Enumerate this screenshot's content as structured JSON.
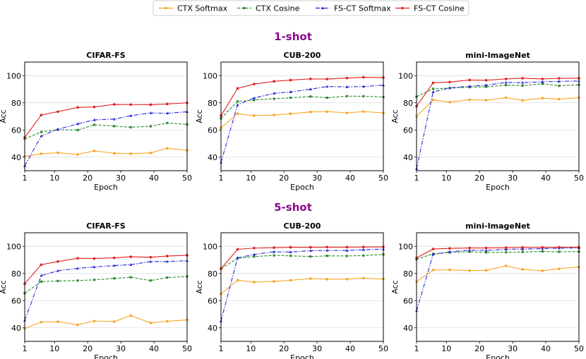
{
  "legend": [
    {
      "name": "CTX Softmax",
      "color": "#f5a623",
      "dash": "solid",
      "marker": "circle"
    },
    {
      "name": "CTX Cosine",
      "color": "#2e8b2e",
      "dash": "dash",
      "marker": "square"
    },
    {
      "name": "FS-CT Softmax",
      "color": "#2626d9",
      "dash": "dashdot",
      "marker": "triangle"
    },
    {
      "name": "FS-CT Cosine",
      "color": "#e02020",
      "dash": "solid",
      "marker": "circle"
    }
  ],
  "sections": [
    {
      "title": "1-shot",
      "color": "#8b0a8b"
    },
    {
      "title": "5-shot",
      "color": "#8b0a8b"
    }
  ],
  "chart_data": [
    {
      "type": "line",
      "shot": "1-shot",
      "title": "CIFAR-FS",
      "xlabel": "Epoch",
      "ylabel": "Acc",
      "xlim": [
        1,
        50
      ],
      "ylim": [
        30,
        110
      ],
      "xticks": [
        1,
        10,
        20,
        30,
        40,
        50
      ],
      "yticks": [
        40,
        60,
        80,
        100
      ],
      "grid": true,
      "x": [
        1,
        6,
        11,
        17,
        22,
        28,
        33,
        39,
        44,
        50
      ],
      "series": [
        {
          "name": "CTX Softmax",
          "values": [
            40.5,
            42.5,
            43.2,
            42.0,
            44.6,
            42.8,
            42.5,
            43.1,
            46.5,
            45.0
          ]
        },
        {
          "name": "CTX Cosine",
          "values": [
            53.5,
            58.5,
            60.2,
            59.9,
            63.8,
            62.8,
            62.0,
            62.7,
            65.1,
            64.1
          ]
        },
        {
          "name": "FS-CT Softmax",
          "values": [
            33.5,
            55.5,
            60.5,
            64.5,
            67.4,
            68.0,
            70.5,
            72.5,
            72.3,
            73.4
          ]
        },
        {
          "name": "FS-CT Cosine",
          "values": [
            54.5,
            71.0,
            73.5,
            76.6,
            76.9,
            78.8,
            78.7,
            78.6,
            79.1,
            80.0
          ]
        }
      ]
    },
    {
      "type": "line",
      "shot": "1-shot",
      "title": "CUB-200",
      "xlabel": "Epoch",
      "ylabel": "Acc",
      "xlim": [
        1,
        50
      ],
      "ylim": [
        30,
        110
      ],
      "xticks": [
        1,
        10,
        20,
        30,
        40,
        50
      ],
      "yticks": [
        40,
        60,
        80,
        100
      ],
      "grid": true,
      "x": [
        1,
        6,
        11,
        17,
        22,
        28,
        33,
        39,
        44,
        50
      ],
      "series": [
        {
          "name": "CTX Softmax",
          "values": [
            61.5,
            72.0,
            70.5,
            71.0,
            71.9,
            73.3,
            73.5,
            72.6,
            73.5,
            72.6
          ]
        },
        {
          "name": "CTX Cosine",
          "values": [
            68.5,
            81.0,
            82.0,
            83.0,
            83.7,
            84.6,
            83.7,
            84.9,
            84.8,
            84.3
          ]
        },
        {
          "name": "FS-CT Softmax",
          "values": [
            36.0,
            78.5,
            83.5,
            87.0,
            88.0,
            90.0,
            92.0,
            91.7,
            92.0,
            93.0
          ]
        },
        {
          "name": "FS-CT Cosine",
          "values": [
            70.5,
            90.6,
            93.8,
            95.8,
            96.7,
            97.6,
            97.5,
            98.2,
            98.8,
            98.6
          ]
        }
      ]
    },
    {
      "type": "line",
      "shot": "1-shot",
      "title": "mini-ImageNet",
      "xlabel": "Epoch",
      "ylabel": "Acc",
      "xlim": [
        1,
        50
      ],
      "ylim": [
        30,
        110
      ],
      "xticks": [
        1,
        10,
        20,
        30,
        40,
        50
      ],
      "yticks": [
        40,
        60,
        80,
        100
      ],
      "grid": true,
      "x": [
        1,
        6,
        11,
        17,
        22,
        28,
        33,
        39,
        44,
        50
      ],
      "series": [
        {
          "name": "CTX Softmax",
          "values": [
            70.0,
            82.2,
            80.5,
            82.3,
            81.9,
            83.8,
            81.8,
            83.4,
            82.7,
            83.8
          ]
        },
        {
          "name": "CTX Cosine",
          "values": [
            84.5,
            90.3,
            90.8,
            91.5,
            91.8,
            93.0,
            92.7,
            94.0,
            92.5,
            93.3
          ]
        },
        {
          "name": "FS-CT Softmax",
          "values": [
            31.5,
            88.0,
            91.0,
            92.2,
            93.0,
            95.0,
            94.9,
            95.4,
            95.8,
            96.0
          ]
        },
        {
          "name": "FS-CT Cosine",
          "values": [
            77.5,
            94.7,
            95.3,
            96.8,
            96.6,
            97.6,
            98.1,
            97.6,
            98.0,
            98.1
          ]
        }
      ]
    },
    {
      "type": "line",
      "shot": "5-shot",
      "title": "CIFAR-FS",
      "xlabel": "Epoch",
      "ylabel": "Acc",
      "xlim": [
        1,
        50
      ],
      "ylim": [
        30,
        110
      ],
      "xticks": [
        1,
        10,
        20,
        30,
        40,
        50
      ],
      "yticks": [
        40,
        60,
        80,
        100
      ],
      "grid": true,
      "x": [
        1,
        6,
        11,
        17,
        22,
        28,
        33,
        39,
        44,
        50
      ],
      "series": [
        {
          "name": "CTX Softmax",
          "values": [
            39.5,
            44.2,
            44.5,
            42.2,
            45.0,
            44.6,
            49.0,
            43.6,
            44.8,
            45.8
          ]
        },
        {
          "name": "CTX Cosine",
          "values": [
            65.5,
            74.0,
            74.5,
            74.8,
            75.3,
            76.4,
            77.2,
            74.8,
            77.0,
            77.8
          ]
        },
        {
          "name": "FS-CT Softmax",
          "values": [
            45.5,
            78.5,
            82.0,
            83.8,
            84.8,
            85.8,
            86.5,
            88.8,
            88.8,
            89.4
          ]
        },
        {
          "name": "FS-CT Cosine",
          "values": [
            72.5,
            86.5,
            88.8,
            91.2,
            91.0,
            91.5,
            92.3,
            92.0,
            92.8,
            93.4
          ]
        }
      ]
    },
    {
      "type": "line",
      "shot": "5-shot",
      "title": "CUB-200",
      "xlabel": "Epoch",
      "ylabel": "Acc",
      "xlim": [
        1,
        50
      ],
      "ylim": [
        30,
        110
      ],
      "xticks": [
        1,
        10,
        20,
        30,
        40,
        50
      ],
      "yticks": [
        40,
        60,
        80,
        100
      ],
      "grid": true,
      "x": [
        1,
        6,
        11,
        17,
        22,
        28,
        33,
        39,
        44,
        50
      ],
      "series": [
        {
          "name": "CTX Softmax",
          "values": [
            65.0,
            75.1,
            73.6,
            74.2,
            75.0,
            76.2,
            75.8,
            75.8,
            76.6,
            75.9
          ]
        },
        {
          "name": "CTX Cosine",
          "values": [
            83.5,
            91.2,
            92.5,
            93.3,
            93.0,
            92.5,
            93.0,
            92.9,
            93.2,
            94.0
          ]
        },
        {
          "name": "FS-CT Softmax",
          "values": [
            45.0,
            91.5,
            94.0,
            96.0,
            95.8,
            96.8,
            97.0,
            96.9,
            97.5,
            98.0
          ]
        },
        {
          "name": "FS-CT Cosine",
          "values": [
            83.5,
            97.8,
            98.7,
            99.0,
            99.3,
            99.3,
            99.4,
            99.4,
            99.5,
            99.6
          ]
        }
      ]
    },
    {
      "type": "line",
      "shot": "5-shot",
      "title": "mini-ImageNet",
      "xlabel": "Epoch",
      "ylabel": "Acc",
      "xlim": [
        1,
        50
      ],
      "ylim": [
        30,
        110
      ],
      "xticks": [
        1,
        10,
        20,
        30,
        40,
        50
      ],
      "yticks": [
        40,
        60,
        80,
        100
      ],
      "grid": true,
      "x": [
        1,
        6,
        11,
        17,
        22,
        28,
        33,
        39,
        44,
        50
      ],
      "series": [
        {
          "name": "CTX Softmax",
          "values": [
            74.0,
            82.6,
            82.7,
            82.1,
            82.3,
            85.6,
            83.0,
            82.0,
            83.5,
            84.8
          ]
        },
        {
          "name": "CTX Cosine",
          "values": [
            90.5,
            94.5,
            95.5,
            96.0,
            95.5,
            95.6,
            95.8,
            96.2,
            96.0,
            96.1
          ]
        },
        {
          "name": "FS-CT Softmax",
          "values": [
            52.5,
            94.0,
            96.0,
            97.2,
            97.0,
            97.8,
            98.0,
            98.3,
            98.6,
            98.8
          ]
        },
        {
          "name": "FS-CT Cosine",
          "values": [
            91.5,
            98.0,
            98.5,
            98.8,
            98.8,
            99.0,
            99.2,
            99.2,
            99.3,
            99.3
          ]
        }
      ]
    }
  ]
}
